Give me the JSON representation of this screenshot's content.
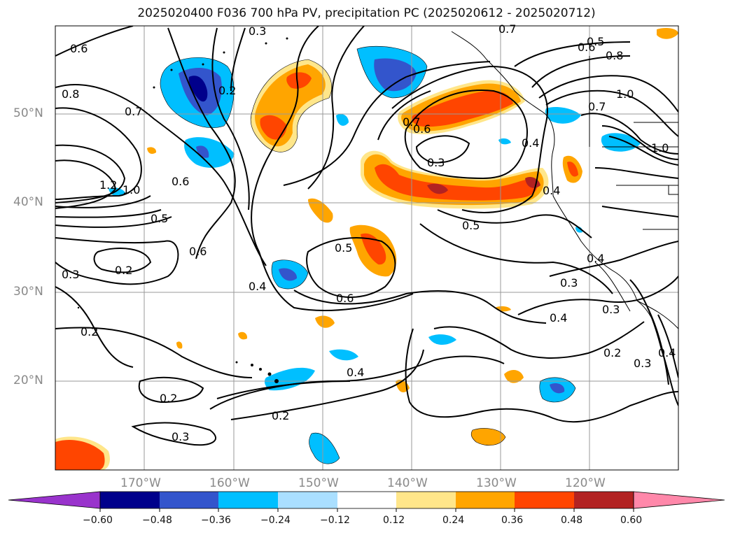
{
  "title": "2025020400 F036 700 hPa PV, precipitation PC (2025020612 - 2025020712)",
  "lat_labels": [
    "50°N",
    "40°N",
    "30°N",
    "20°N"
  ],
  "lon_labels": [
    "170°W",
    "160°W",
    "150°W",
    "140°W",
    "130°W",
    "120°W"
  ],
  "colorbar": {
    "ticks": [
      "−0.60",
      "−0.48",
      "−0.36",
      "−0.24",
      "−0.12",
      "0.12",
      "0.24",
      "0.36",
      "0.48",
      "0.60"
    ],
    "colors": [
      "#9933cc",
      "#00008b",
      "#3355cc",
      "#00bfff",
      "#aadfff",
      "#ffffff",
      "#ffe68a",
      "#ffa500",
      "#ff4500",
      "#b22222",
      "#ff88aa"
    ]
  },
  "contour_labels": [
    "0.6",
    "0.3",
    "0.7",
    "0.5",
    "0.6",
    "0.8",
    "0.8",
    "0.7",
    "0.2",
    "0.7",
    "0.6",
    "0.3",
    "0.4",
    "1.0",
    "1.0",
    "1.2",
    "0.6",
    "0.5",
    "0.6",
    "0.5",
    "0.4",
    "0.5",
    "0.3",
    "0.2",
    "0.6",
    "0.4",
    "0.4",
    "0.3",
    "0.4",
    "0.3",
    "0.2",
    "0.2",
    "0.4",
    "0.2",
    "0.2",
    "0.3",
    "0.3",
    "0.4",
    "0.7",
    "1.0"
  ]
}
